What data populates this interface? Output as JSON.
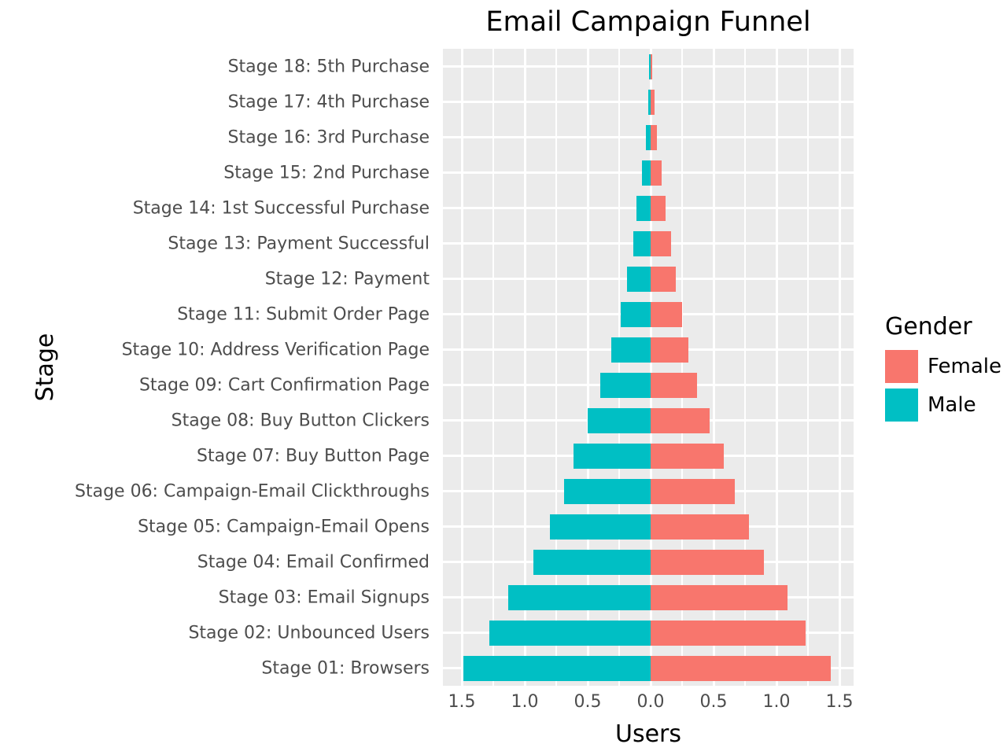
{
  "chart_data": {
    "type": "bar",
    "variant": "diverging-horizontal-pyramid",
    "title": "Email Campaign Funnel",
    "xlabel": "Users",
    "ylabel": "Stage",
    "legend_title": "Gender",
    "legend_position": "right",
    "grid": true,
    "panel_background": "#EBEBEB",
    "gridline_color": "#ffffff",
    "axis_text_color": "#4D4D4D",
    "categories": [
      "Stage 18: 5th Purchase",
      "Stage 17: 4th Purchase",
      "Stage 16: 3rd Purchase",
      "Stage 15: 2nd Purchase",
      "Stage 14: 1st Successful Purchase",
      "Stage 13: Payment Successful",
      "Stage 12: Payment",
      "Stage 11: Submit Order Page",
      "Stage 10: Address Verification Page",
      "Stage 09: Cart Confirmation Page",
      "Stage 08: Buy Button Clickers",
      "Stage 07: Buy Button Page",
      "Stage 06: Campaign-Email Clickthroughs",
      "Stage 05: Campaign-Email Opens",
      "Stage 04: Email Confirmed",
      "Stage 03: Email Signups",
      "Stage 02: Unbounced Users",
      "Stage 01: Browsers"
    ],
    "series": [
      {
        "name": "Female",
        "color": "#F8766D",
        "side": "right",
        "values": [
          0.015,
          0.03,
          0.05,
          0.09,
          0.12,
          0.16,
          0.2,
          0.25,
          0.3,
          0.37,
          0.47,
          0.58,
          0.67,
          0.78,
          0.9,
          1.09,
          1.23,
          1.43
        ]
      },
      {
        "name": "Male",
        "color": "#00BFC4",
        "side": "left",
        "values": [
          0.01,
          0.02,
          0.04,
          0.07,
          0.11,
          0.14,
          0.19,
          0.24,
          0.31,
          0.4,
          0.5,
          0.61,
          0.69,
          0.8,
          0.93,
          1.13,
          1.28,
          1.49
        ]
      }
    ],
    "x_ticks": [
      "1.5",
      "1.0",
      "0.5",
      "0.0",
      "0.5",
      "1.0",
      "1.5"
    ],
    "x_tick_values": [
      -1.5,
      -1.0,
      -0.5,
      0.0,
      0.5,
      1.0,
      1.5
    ],
    "x_minor_tick_values": [
      -1.25,
      -0.75,
      -0.25,
      0.25,
      0.75,
      1.25
    ],
    "xlim": [
      -1.65,
      1.65
    ]
  }
}
